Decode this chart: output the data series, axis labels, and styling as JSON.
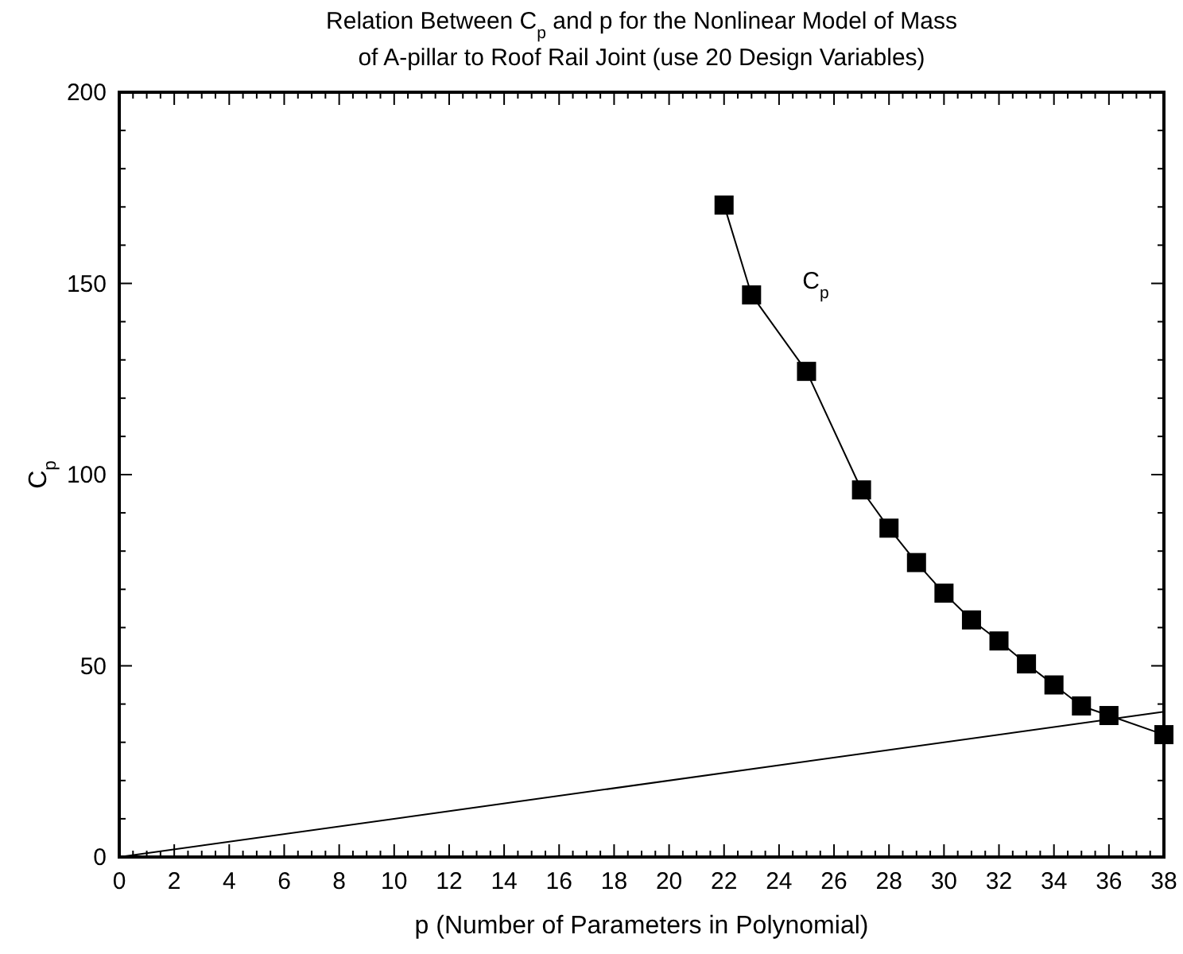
{
  "chart_data": {
    "type": "line",
    "title": "Relation Between C$_{p}$ and p for the Nonlinear Model of Mass\nof A-pillar to Roof Rail Joint (use 20 Design Variables)",
    "xlabel": "p (Number of Parameters in Polynomial)",
    "ylabel": "C$_{p}$",
    "xlim": [
      0,
      38
    ],
    "ylim": [
      0,
      200
    ],
    "xticks": [
      0,
      2,
      4,
      6,
      8,
      10,
      12,
      14,
      16,
      18,
      20,
      22,
      24,
      26,
      28,
      30,
      32,
      34,
      36,
      38
    ],
    "yticks": [
      0,
      50,
      100,
      150,
      200
    ],
    "grid": false,
    "tick_labels": "xy",
    "series": [
      {
        "name": "C$_{p}$",
        "color": "#000000",
        "marker": "square",
        "x": [
          22,
          23,
          25,
          27,
          28,
          29,
          30,
          31,
          32,
          33,
          34,
          35,
          36,
          38
        ],
        "values": [
          170.5,
          147,
          127,
          96,
          86,
          77,
          69,
          62,
          56.5,
          50.5,
          45,
          39.5,
          37,
          32
        ]
      },
      {
        "color": "#000000",
        "marker": "none",
        "x": [
          0,
          38
        ],
        "values": [
          0,
          38
        ]
      }
    ]
  }
}
